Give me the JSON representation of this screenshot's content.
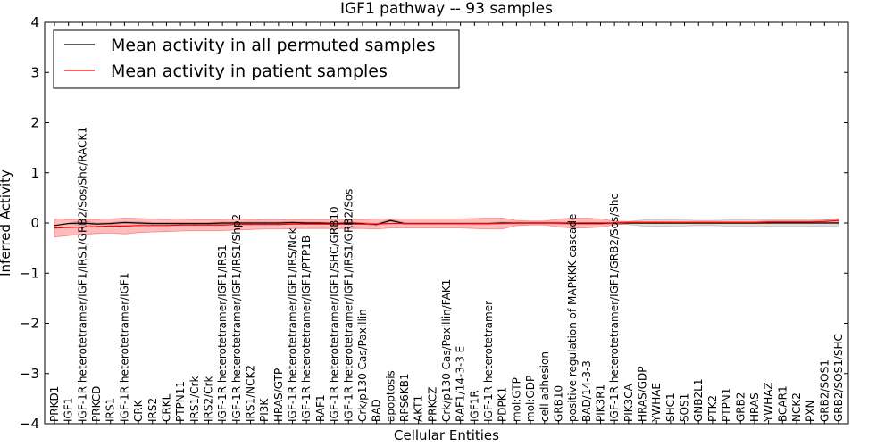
{
  "chart_data": {
    "type": "line",
    "title": "IGF1 pathway -- 93 samples",
    "xlabel": "Cellular Entities",
    "ylabel": "Inferred Activity",
    "ylim": [
      -4,
      4
    ],
    "yticks": [
      -4,
      -3,
      -2,
      -1,
      0,
      1,
      2,
      3,
      4
    ],
    "ytick_labels": [
      "−4",
      "−3",
      "−2",
      "−1",
      "0",
      "1",
      "2",
      "3",
      "4"
    ],
    "legend_position": "top-left",
    "grid": false,
    "categories": [
      "PRKD1",
      "IGF1",
      "IGF-1R heterotetramer/IGF1/IRS1/GRB2/Sos/Shc/RACK1",
      "PRKCD",
      "IRS1",
      "IGF-1R heterotetramer/IGF1",
      "CRK",
      "IRS2",
      "CRKL",
      "PTPN11",
      "IRS1/Crk",
      "IRS2/Crk",
      "IGF-1R heterotetramer/IGF1/IRS1",
      "IGF-1R heterotetramer/IGF1/IRS1/Shp2",
      "IRS1/NCK2",
      "PI3K",
      "HRAS/GTP",
      "IGF-1R heterotetramer/IGF1/IRS/Nck",
      "IGF-1R heterotetramer/IGF1/PTP1B",
      "RAF1",
      "IGF-1R heterotetramer/IGF1/SHC/GRB10",
      "IGF-1R heterotetramer/IGF1/IRS1/GRB2/Sos",
      "Crk/p130 Cas/Paxillin",
      "BAD",
      "apoptosis",
      "RPS6KB1",
      "AKT1",
      "PRKCZ",
      "Crk/p130 Cas/Paxillin/FAK1",
      "RAF1/14-3-3 E",
      "IGF1R",
      "IGF-1R heterotetramer",
      "PDPK1",
      "mol:GTP",
      "mol:GDP",
      "cell adhesion",
      "GRB10",
      "positive regulation of MAPKKK cascade",
      "BAD/14-3-3",
      "PIK3R1",
      "IGF-1R heterotetramer/IGF1/GRB2/Sos/Shc",
      "PIK3CA",
      "HRAS/GDP",
      "YWHAE",
      "SHC1",
      "SOS1",
      "GNB2L1",
      "PTK2",
      "PTPN1",
      "GRB2",
      "HRAS",
      "YWHAZ",
      "BCAR1",
      "NCK2",
      "PXN",
      "GRB2/SOS1",
      "GRB2/SOS1/SHC"
    ],
    "series": [
      {
        "name": "Mean activity in all permuted samples",
        "color": "#000000",
        "values": [
          -0.05,
          -0.01,
          0.0,
          -0.02,
          -0.01,
          0.01,
          0.0,
          -0.01,
          -0.01,
          -0.01,
          -0.01,
          -0.01,
          0.0,
          0.0,
          0.0,
          0.0,
          0.0,
          0.01,
          0.0,
          0.0,
          -0.01,
          0.0,
          -0.01,
          -0.03,
          0.05,
          -0.01,
          -0.01,
          -0.01,
          -0.01,
          -0.01,
          -0.01,
          -0.01,
          0.0,
          0.0,
          0.0,
          0.0,
          0.0,
          -0.01,
          -0.01,
          -0.01,
          0.0,
          0.0,
          0.0,
          0.0,
          0.0,
          0.0,
          0.0,
          0.0,
          0.0,
          0.0,
          0.0,
          0.0,
          0.0,
          0.0,
          0.0,
          0.0,
          0.0
        ],
        "band_lower": [
          -0.05,
          -0.02,
          -0.05,
          -0.03,
          -0.03,
          -0.01,
          -0.02,
          -0.03,
          -0.03,
          -0.03,
          -0.03,
          -0.03,
          -0.02,
          -0.02,
          -0.02,
          -0.02,
          -0.02,
          -0.01,
          -0.02,
          -0.02,
          -0.03,
          -0.02,
          -0.03,
          -0.05,
          0.03,
          -0.03,
          -0.03,
          -0.03,
          -0.03,
          -0.03,
          -0.03,
          -0.03,
          -0.02,
          -0.02,
          -0.02,
          -0.02,
          -0.02,
          -0.03,
          -0.03,
          -0.03,
          -0.02,
          -0.03,
          -0.06,
          -0.07,
          -0.06,
          -0.06,
          -0.05,
          -0.05,
          -0.06,
          -0.06,
          -0.06,
          -0.06,
          -0.06,
          -0.06,
          -0.06,
          -0.06,
          -0.06
        ],
        "band_upper": [
          -0.05,
          0.0,
          0.05,
          0.0,
          0.01,
          0.03,
          0.02,
          0.01,
          0.01,
          0.01,
          0.01,
          0.01,
          0.02,
          0.02,
          0.02,
          0.02,
          0.02,
          0.03,
          0.02,
          0.02,
          0.01,
          0.02,
          0.01,
          -0.01,
          0.07,
          0.01,
          0.01,
          0.01,
          0.01,
          0.01,
          0.01,
          0.01,
          0.02,
          0.02,
          0.02,
          0.02,
          0.02,
          0.01,
          0.01,
          0.01,
          0.02,
          0.03,
          0.06,
          0.07,
          0.06,
          0.06,
          0.05,
          0.05,
          0.06,
          0.06,
          0.06,
          0.06,
          0.06,
          0.06,
          0.06,
          0.06,
          0.06
        ]
      },
      {
        "name": "Mean activity in patient samples",
        "color": "#ff0000",
        "values": [
          -0.1,
          -0.09,
          -0.08,
          -0.07,
          -0.06,
          -0.06,
          -0.05,
          -0.05,
          -0.05,
          -0.04,
          -0.04,
          -0.04,
          -0.04,
          -0.03,
          -0.03,
          -0.03,
          -0.03,
          -0.02,
          -0.02,
          -0.02,
          -0.02,
          -0.02,
          -0.02,
          -0.02,
          -0.01,
          -0.01,
          -0.01,
          -0.01,
          -0.01,
          -0.01,
          -0.01,
          -0.01,
          -0.01,
          0.0,
          0.0,
          0.0,
          0.0,
          0.0,
          0.0,
          0.0,
          0.0,
          0.01,
          0.01,
          0.01,
          0.01,
          0.01,
          0.01,
          0.01,
          0.01,
          0.01,
          0.01,
          0.02,
          0.02,
          0.02,
          0.02,
          0.03,
          0.05
        ],
        "band_lower": [
          -0.28,
          -0.25,
          -0.23,
          -0.21,
          -0.2,
          -0.22,
          -0.19,
          -0.18,
          -0.17,
          -0.16,
          -0.15,
          -0.15,
          -0.15,
          -0.14,
          -0.13,
          -0.12,
          -0.12,
          -0.11,
          -0.11,
          -0.11,
          -0.11,
          -0.11,
          -0.11,
          -0.12,
          -0.1,
          -0.1,
          -0.1,
          -0.1,
          -0.1,
          -0.1,
          -0.11,
          -0.12,
          -0.12,
          -0.05,
          -0.04,
          -0.04,
          -0.08,
          -0.1,
          -0.1,
          -0.08,
          -0.04,
          -0.01,
          -0.01,
          -0.01,
          -0.01,
          -0.01,
          -0.01,
          -0.01,
          -0.01,
          -0.01,
          -0.01,
          0.0,
          0.0,
          0.0,
          0.0,
          0.0,
          0.01
        ],
        "band_upper": [
          0.08,
          0.07,
          0.07,
          0.07,
          0.08,
          0.1,
          0.09,
          0.08,
          0.07,
          0.08,
          0.07,
          0.07,
          0.07,
          0.08,
          0.07,
          0.06,
          0.06,
          0.07,
          0.07,
          0.07,
          0.07,
          0.07,
          0.07,
          0.08,
          0.08,
          0.08,
          0.08,
          0.08,
          0.08,
          0.08,
          0.09,
          0.1,
          0.1,
          0.05,
          0.04,
          0.04,
          0.08,
          0.1,
          0.1,
          0.08,
          0.04,
          0.03,
          0.03,
          0.03,
          0.03,
          0.03,
          0.03,
          0.03,
          0.03,
          0.03,
          0.03,
          0.04,
          0.04,
          0.04,
          0.04,
          0.06,
          0.09
        ]
      }
    ]
  }
}
